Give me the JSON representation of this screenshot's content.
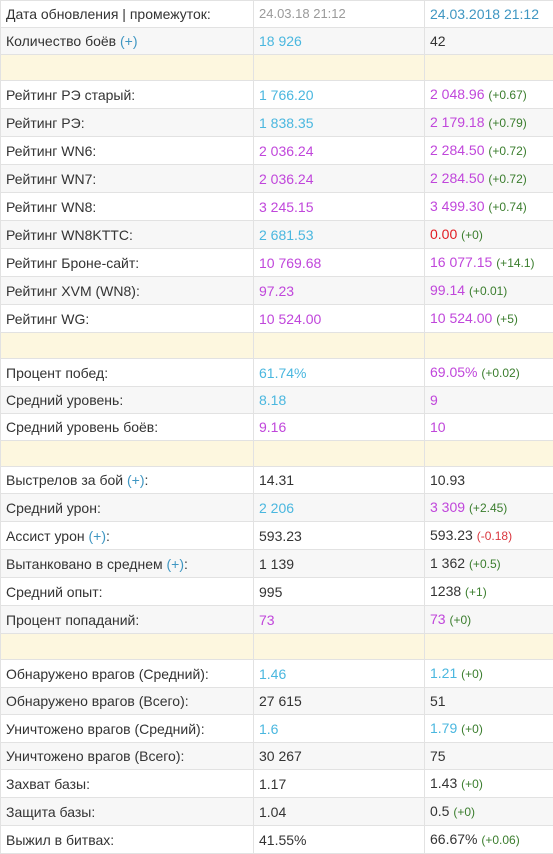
{
  "header": {
    "label": "Дата обновления | промежуток:",
    "col2": "24.03.18 21:12",
    "col3": "24.03.2018 21:12"
  },
  "colors": {
    "blue": "#4ab7df",
    "purple": "#c046db",
    "red": "#e11b22",
    "delta_positive": "#3a7d2d",
    "delta_negative": "#d9363e",
    "spacer": "#fdf7df"
  },
  "rows": [
    {
      "label": "Количество боёв",
      "plus": "(+)",
      "col2": "18 926",
      "col2_color": "blue",
      "col3": "42",
      "col3_color": "dark",
      "delta": ""
    },
    {
      "spacer": true
    },
    {
      "label": "Рейтинг РЭ старый:",
      "col2": "1 766.20",
      "col2_color": "blue",
      "col3": "2 048.96",
      "col3_color": "purple",
      "delta": "(+0.67)",
      "delta_sign": "pos"
    },
    {
      "label": "Рейтинг РЭ:",
      "col2": "1 838.35",
      "col2_color": "blue",
      "col3": "2 179.18",
      "col3_color": "purple",
      "delta": "(+0.79)",
      "delta_sign": "pos"
    },
    {
      "label": "Рейтинг WN6:",
      "col2": "2 036.24",
      "col2_color": "purple",
      "col3": "2 284.50",
      "col3_color": "purple",
      "delta": "(+0.72)",
      "delta_sign": "pos"
    },
    {
      "label": "Рейтинг WN7:",
      "col2": "2 036.24",
      "col2_color": "purple",
      "col3": "2 284.50",
      "col3_color": "purple",
      "delta": "(+0.72)",
      "delta_sign": "pos"
    },
    {
      "label": "Рейтинг WN8:",
      "col2": "3 245.15",
      "col2_color": "purple",
      "col3": "3 499.30",
      "col3_color": "purple",
      "delta": "(+0.74)",
      "delta_sign": "pos"
    },
    {
      "label": "Рейтинг WN8KTTC:",
      "col2": "2 681.53",
      "col2_color": "blue",
      "col3": "0.00",
      "col3_color": "red",
      "delta": "(+0)",
      "delta_sign": "zero"
    },
    {
      "label": "Рейтинг Броне-сайт:",
      "col2": "10 769.68",
      "col2_color": "purple",
      "col3": "16 077.15",
      "col3_color": "purple",
      "delta": "(+14.1)",
      "delta_sign": "pos"
    },
    {
      "label": "Рейтинг XVM (WN8):",
      "col2": "97.23",
      "col2_color": "purple",
      "col3": "99.14",
      "col3_color": "purple",
      "delta": "(+0.01)",
      "delta_sign": "pos"
    },
    {
      "label": "Рейтинг WG:",
      "col2": "10 524.00",
      "col2_color": "purple",
      "col3": "10 524.00",
      "col3_color": "purple",
      "delta": "(+5)",
      "delta_sign": "pos"
    },
    {
      "spacer": true
    },
    {
      "label": "Процент побед:",
      "col2": "61.74%",
      "col2_color": "blue",
      "col3": "69.05%",
      "col3_color": "purple",
      "delta": "(+0.02)",
      "delta_sign": "pos"
    },
    {
      "label": "Средний уровень:",
      "col2": "8.18",
      "col2_color": "blue",
      "col3": "9",
      "col3_color": "purple",
      "delta": ""
    },
    {
      "label": "Средний уровень боёв:",
      "col2": "9.16",
      "col2_color": "purple",
      "col3": "10",
      "col3_color": "purple",
      "delta": ""
    },
    {
      "spacer": true
    },
    {
      "label": "Выстрелов за бой",
      "plus": "(+)",
      "suffix": ":",
      "col2": "14.31",
      "col2_color": "dark",
      "col3": "10.93",
      "col3_color": "dark",
      "delta": ""
    },
    {
      "label": "Средний урон:",
      "col2": "2 206",
      "col2_color": "blue",
      "col3": "3 309",
      "col3_color": "purple",
      "delta": "(+2.45)",
      "delta_sign": "pos"
    },
    {
      "label": "Ассист урон",
      "plus": "(+)",
      "suffix": ":",
      "col2": "593.23",
      "col2_color": "dark",
      "col3": "593.23",
      "col3_color": "dark",
      "delta": "(-0.18)",
      "delta_sign": "neg"
    },
    {
      "label": "Вытанковано в среднем",
      "plus": "(+)",
      "suffix": ":",
      "col2": "1 139",
      "col2_color": "dark",
      "col3": "1 362",
      "col3_color": "dark",
      "delta": "(+0.5)",
      "delta_sign": "pos"
    },
    {
      "label": "Средний опыт:",
      "col2": "995",
      "col2_color": "dark",
      "col3": "1238",
      "col3_color": "dark",
      "delta": "(+1)",
      "delta_sign": "pos"
    },
    {
      "label": "Процент попаданий:",
      "col2": "73",
      "col2_color": "purple",
      "col3": "73",
      "col3_color": "purple",
      "delta": "(+0)",
      "delta_sign": "zero"
    },
    {
      "spacer": true
    },
    {
      "label": "Обнаружено врагов (Средний):",
      "col2": "1.46",
      "col2_color": "blue",
      "col3": "1.21",
      "col3_color": "blue",
      "delta": "(+0)",
      "delta_sign": "zero"
    },
    {
      "label": "Обнаружено врагов (Всего):",
      "col2": "27 615",
      "col2_color": "dark",
      "col3": "51",
      "col3_color": "dark",
      "delta": ""
    },
    {
      "label": "Уничтожено врагов (Средний):",
      "col2": "1.6",
      "col2_color": "blue",
      "col3": "1.79",
      "col3_color": "blue",
      "delta": "(+0)",
      "delta_sign": "zero"
    },
    {
      "label": "Уничтожено врагов (Всего):",
      "col2": "30 267",
      "col2_color": "dark",
      "col3": "75",
      "col3_color": "dark",
      "delta": ""
    },
    {
      "label": "Захват базы:",
      "col2": "1.17",
      "col2_color": "dark",
      "col3": "1.43",
      "col3_color": "dark",
      "delta": "(+0)",
      "delta_sign": "zero"
    },
    {
      "label": "Защита базы:",
      "col2": "1.04",
      "col2_color": "dark",
      "col3": "0.5",
      "col3_color": "dark",
      "delta": "(+0)",
      "delta_sign": "zero"
    },
    {
      "label": "Выжил в битвах:",
      "col2": "41.55%",
      "col2_color": "dark",
      "col3": "66.67%",
      "col3_color": "dark",
      "delta": "(+0.06)",
      "delta_sign": "pos"
    }
  ]
}
